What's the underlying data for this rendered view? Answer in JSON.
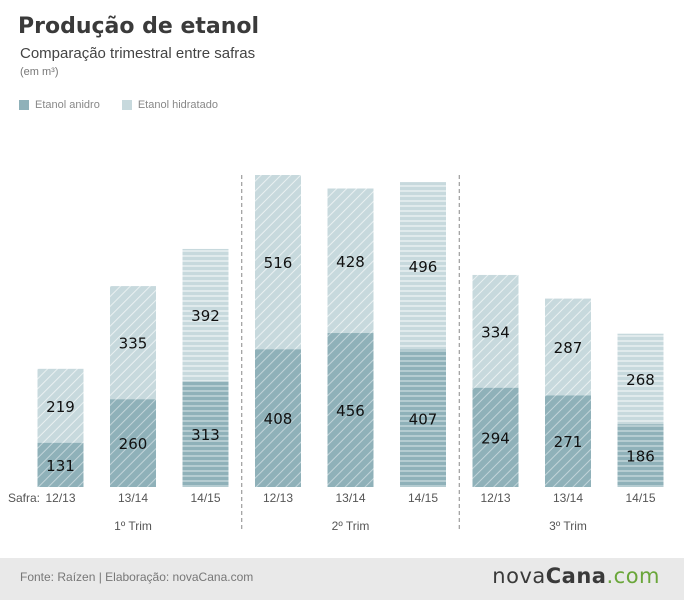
{
  "title": "Produção de etanol",
  "subtitle": "Comparação trimestral entre safras",
  "unit": "(em m³)",
  "legend": {
    "anidro": "Etanol anidro",
    "hidratado": "Etanol hidratado"
  },
  "colors": {
    "anidro": "#8fb1b9",
    "hidratado": "#c7d9dd",
    "divider": "#888888"
  },
  "safra_label": "Safra:",
  "footer": {
    "source": "Fonte: Raízen | Elaboração: novaCana.com",
    "logo_nova": "nova",
    "logo_cana": "Cana",
    "logo_com": ".com"
  },
  "chart_data": {
    "type": "bar",
    "stacked": true,
    "title": "Produção de etanol",
    "subtitle": "Comparação trimestral entre safras",
    "ylabel": "(em m³)",
    "ylim": [
      0,
      924
    ],
    "grid": false,
    "legend_position": "top-left",
    "groups": [
      "1º Trim",
      "2º Trim",
      "3º Trim"
    ],
    "categories": [
      "12/13",
      "13/14",
      "14/15",
      "12/13",
      "13/14",
      "14/15",
      "12/13",
      "13/14",
      "14/15"
    ],
    "group_index": [
      0,
      0,
      0,
      1,
      1,
      1,
      2,
      2,
      2
    ],
    "series": [
      {
        "name": "Etanol anidro",
        "values": [
          131,
          260,
          313,
          408,
          456,
          407,
          294,
          271,
          186
        ]
      },
      {
        "name": "Etanol hidratado",
        "values": [
          219,
          335,
          392,
          516,
          428,
          496,
          334,
          287,
          268
        ]
      }
    ]
  }
}
